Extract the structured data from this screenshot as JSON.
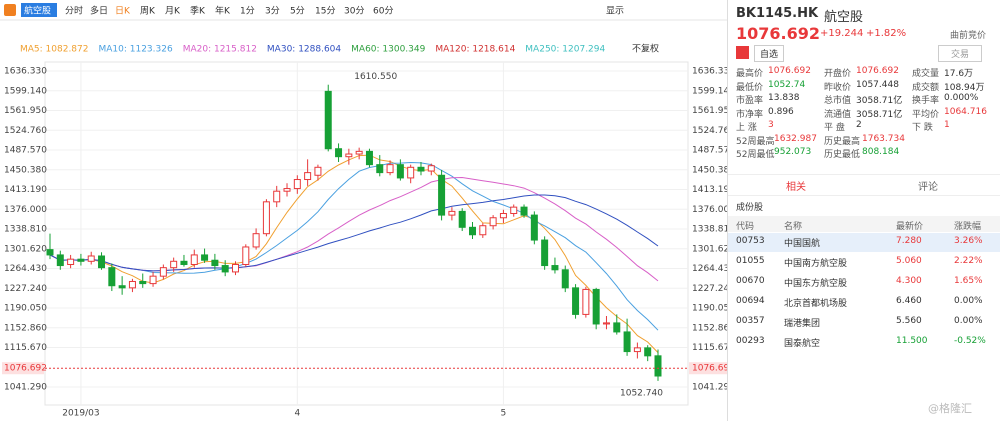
{
  "toolbar": {
    "tabs": [
      "航空股",
      "分时",
      "多日",
      "日K",
      "周K",
      "月K",
      "季K",
      "年K",
      "1分",
      "3分",
      "5分",
      "15分",
      "30分",
      "60分"
    ],
    "active": 3,
    "display": "显示"
  },
  "chart_data": {
    "type": "candlestick",
    "ma_legend": [
      {
        "label": "MA5: 1082.872",
        "color": "#f0a030"
      },
      {
        "label": "MA10: 1123.326",
        "color": "#4aa0e0"
      },
      {
        "label": "MA20: 1215.812",
        "color": "#d860c8"
      },
      {
        "label": "MA30: 1288.604",
        "color": "#3050c0"
      },
      {
        "label": "MA60: 1300.349",
        "color": "#30a040"
      },
      {
        "label": "MA120: 1218.614",
        "color": "#d03030"
      },
      {
        "label": "MA250: 1207.294",
        "color": "#40c0c0"
      }
    ],
    "adjust": "不复权",
    "categories": [
      null,
      null,
      null,
      "2019/03",
      null,
      null,
      null,
      null,
      null,
      null,
      null,
      null,
      null,
      null,
      null,
      null,
      null,
      null,
      null,
      null,
      null,
      null,
      null,
      null,
      "4",
      null,
      null,
      null,
      null,
      null,
      null,
      null,
      null,
      null,
      null,
      null,
      null,
      null,
      null,
      null,
      null,
      null,
      null,
      null,
      "5",
      null,
      null,
      null,
      null,
      null,
      null,
      null,
      null,
      null,
      null,
      null,
      null,
      null,
      null,
      null
    ],
    "open": [
      1300,
      1290,
      1272,
      1282,
      1278,
      1288,
      1266,
      1232,
      1228,
      1240,
      1236,
      1250,
      1266,
      1278,
      1272,
      1290,
      1280,
      1270,
      1258,
      1272,
      1305,
      1330,
      1390,
      1410,
      1415,
      1432,
      1440,
      1598,
      1490,
      1475,
      1480,
      1485,
      1460,
      1445,
      1460,
      1435,
      1455,
      1448,
      1440,
      1365,
      1372,
      1342,
      1328,
      1345,
      1360,
      1368,
      1380,
      1365,
      1318,
      1270,
      1262,
      1228,
      1178,
      1225,
      1160,
      1162,
      1145,
      1108,
      1115,
      1100
    ],
    "high": [
      1330,
      1298,
      1290,
      1292,
      1296,
      1295,
      1274,
      1250,
      1245,
      1255,
      1258,
      1272,
      1285,
      1290,
      1300,
      1302,
      1292,
      1280,
      1278,
      1310,
      1340,
      1395,
      1420,
      1425,
      1440,
      1470,
      1460,
      1610.55,
      1500,
      1490,
      1492,
      1490,
      1478,
      1468,
      1470,
      1460,
      1465,
      1462,
      1450,
      1380,
      1378,
      1352,
      1350,
      1365,
      1375,
      1385,
      1385,
      1372,
      1325,
      1285,
      1270,
      1235,
      1230,
      1228,
      1175,
      1178,
      1170,
      1125,
      1120,
      1112
    ],
    "low": [
      1282,
      1262,
      1265,
      1270,
      1272,
      1262,
      1222,
      1215,
      1220,
      1228,
      1230,
      1244,
      1258,
      1268,
      1266,
      1275,
      1262,
      1250,
      1252,
      1268,
      1300,
      1325,
      1380,
      1400,
      1405,
      1420,
      1430,
      1485,
      1465,
      1460,
      1470,
      1455,
      1438,
      1440,
      1430,
      1425,
      1440,
      1440,
      1355,
      1355,
      1335,
      1320,
      1322,
      1338,
      1350,
      1362,
      1360,
      1310,
      1262,
      1255,
      1220,
      1170,
      1172,
      1150,
      1150,
      1140,
      1100,
      1095,
      1090,
      1052.74
    ],
    "close": [
      1290,
      1270,
      1282,
      1278,
      1288,
      1266,
      1232,
      1228,
      1240,
      1236,
      1250,
      1266,
      1278,
      1272,
      1290,
      1280,
      1270,
      1258,
      1272,
      1305,
      1330,
      1390,
      1410,
      1415,
      1432,
      1445,
      1455,
      1490,
      1475,
      1480,
      1485,
      1460,
      1445,
      1460,
      1435,
      1455,
      1448,
      1458,
      1365,
      1372,
      1342,
      1328,
      1345,
      1360,
      1368,
      1380,
      1365,
      1318,
      1270,
      1262,
      1228,
      1178,
      1225,
      1160,
      1162,
      1145,
      1108,
      1115,
      1100,
      1062
    ],
    "up_color": "#e8383a",
    "down_color": "#16a035",
    "ylim": [
      1007.4,
      1653.3
    ],
    "yticks": [
      {
        "value": 1041.29,
        "label": "1041.290"
      },
      {
        "value": 1115.67,
        "label": "1115.670"
      },
      {
        "value": 1152.86,
        "label": "1152.860"
      },
      {
        "value": 1190.05,
        "label": "1190.050"
      },
      {
        "value": 1227.24,
        "label": "1227.240"
      },
      {
        "value": 1264.43,
        "label": "1264.430"
      },
      {
        "value": 1301.62,
        "label": "1301.620"
      },
      {
        "value": 1338.81,
        "label": "1338.810"
      },
      {
        "value": 1376,
        "label": "1376.000"
      },
      {
        "value": 1413.19,
        "label": "1413.190"
      },
      {
        "value": 1450.38,
        "label": "1450.380"
      },
      {
        "value": 1487.57,
        "label": "1487.570"
      },
      {
        "value": 1524.76,
        "label": "1524.760"
      },
      {
        "value": 1561.95,
        "label": "1561.950"
      },
      {
        "value": 1599.14,
        "label": "1599.140"
      },
      {
        "value": 1636.33,
        "label": "1636.330"
      }
    ],
    "last_price": 1076.692,
    "annotations": [
      {
        "value": 1610.55,
        "label": "1610.550",
        "index": 27
      },
      {
        "value": 1052.74,
        "label": "1052.740",
        "index": 59
      }
    ]
  },
  "quote": {
    "code": "BK1145.HK",
    "name": "航空股",
    "price": "1076.692",
    "change": "+19.244",
    "pct": "+1.82%",
    "session": "曲前竞价",
    "watch": "自选",
    "trade": "交易",
    "stats": [
      [
        [
          "最高价",
          "1076.692",
          "#e8383a"
        ],
        [
          "开盘价",
          "1076.692",
          "#e8383a"
        ],
        [
          "成交量",
          "17.6万",
          "#333"
        ]
      ],
      [
        [
          "最低价",
          "1052.74",
          "#16a035"
        ],
        [
          "昨收价",
          "1057.448",
          "#333"
        ],
        [
          "成交额",
          "108.94万",
          "#333"
        ]
      ],
      [
        [
          "市盈率",
          "13.838",
          "#333"
        ],
        [
          "总市值",
          "3058.71亿",
          "#333"
        ],
        [
          "换手率",
          "0.000%",
          "#333"
        ]
      ],
      [
        [
          "市净率",
          "0.896",
          "#333"
        ],
        [
          "流通值",
          "3058.71亿",
          "#333"
        ],
        [
          "平均价",
          "1064.716",
          "#e8383a"
        ]
      ],
      [
        [
          "上 涨",
          "3",
          "#e8383a"
        ],
        [
          "平 盘",
          "2",
          "#333"
        ],
        [
          "下 跌",
          "1",
          "#e8383a"
        ]
      ],
      [
        [
          "52周最高",
          "1632.987",
          "#e8383a"
        ],
        [
          "历史最高",
          "1763.734",
          "#e8383a"
        ]
      ],
      [
        [
          "52周最低",
          "952.073",
          "#16a035"
        ],
        [
          "历史最低",
          "808.184",
          "#16a035"
        ]
      ]
    ],
    "tabs": [
      "相关",
      "评论"
    ],
    "section": "成份股",
    "table": {
      "header": [
        "代码",
        "名称",
        "最新价",
        "涨跌幅"
      ],
      "rows": [
        [
          "00753",
          "中国国航",
          "7.280",
          "3.26%",
          "#e8383a"
        ],
        [
          "01055",
          "中国南方航空股",
          "5.060",
          "2.22%",
          "#e8383a"
        ],
        [
          "00670",
          "中国东方航空股",
          "4.300",
          "1.65%",
          "#e8383a"
        ],
        [
          "00694",
          "北京首都机场股",
          "6.460",
          "0.00%",
          "#333"
        ],
        [
          "00357",
          "瑞港集团",
          "5.560",
          "0.00%",
          "#333"
        ],
        [
          "00293",
          "国泰航空",
          "11.500",
          "-0.52%",
          "#16a035"
        ]
      ]
    }
  },
  "watermark": "@格隆汇"
}
